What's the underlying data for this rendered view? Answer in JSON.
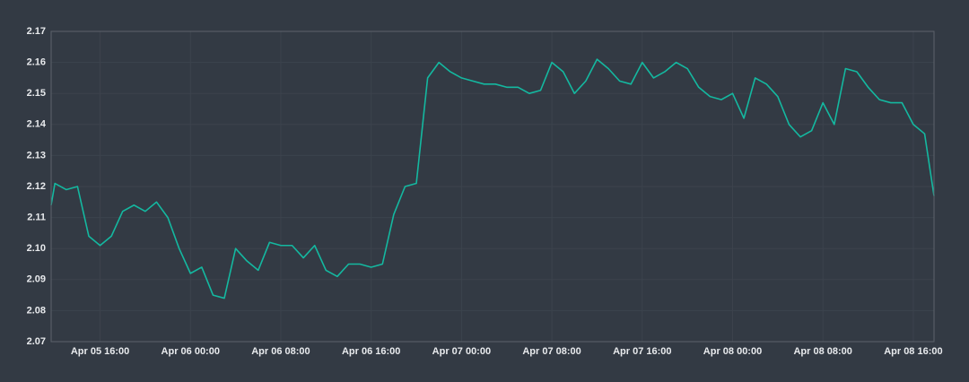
{
  "chart_data": {
    "type": "line",
    "color": "#14b8a0",
    "grid": true,
    "xlim": [
      "Apr 05 11:40",
      "Apr 08 17:50"
    ],
    "xticks": [
      "Apr 05 16:00",
      "Apr 06 00:00",
      "Apr 06 08:00",
      "Apr 06 16:00",
      "Apr 07 00:00",
      "Apr 07 08:00",
      "Apr 07 16:00",
      "Apr 08 00:00",
      "Apr 08 08:00",
      "Apr 08 16:00"
    ],
    "ylim": [
      2.07,
      2.17
    ],
    "yticks": [
      2.07,
      2.08,
      2.09,
      {
        "value": 2.1,
        "label": "2.10"
      },
      2.11,
      2.12,
      2.13,
      2.14,
      2.15,
      2.16,
      2.17
    ],
    "x": [
      "Apr 05 11:40",
      "Apr 05 12:00",
      "Apr 05 13:00",
      "Apr 05 14:00",
      "Apr 05 15:00",
      "Apr 05 16:00",
      "Apr 05 17:00",
      "Apr 05 18:00",
      "Apr 05 19:00",
      "Apr 05 20:00",
      "Apr 05 21:00",
      "Apr 05 22:00",
      "Apr 05 23:00",
      "Apr 06 00:00",
      "Apr 06 01:00",
      "Apr 06 02:00",
      "Apr 06 03:00",
      "Apr 06 04:00",
      "Apr 06 05:00",
      "Apr 06 06:00",
      "Apr 06 07:00",
      "Apr 06 08:00",
      "Apr 06 09:00",
      "Apr 06 10:00",
      "Apr 06 11:00",
      "Apr 06 12:00",
      "Apr 06 13:00",
      "Apr 06 14:00",
      "Apr 06 15:00",
      "Apr 06 16:00",
      "Apr 06 17:00",
      "Apr 06 18:00",
      "Apr 06 19:00",
      "Apr 06 20:00",
      "Apr 06 21:00",
      "Apr 06 22:00",
      "Apr 06 23:00",
      "Apr 07 00:00",
      "Apr 07 01:00",
      "Apr 07 02:00",
      "Apr 07 03:00",
      "Apr 07 04:00",
      "Apr 07 05:00",
      "Apr 07 06:00",
      "Apr 07 07:00",
      "Apr 07 08:00",
      "Apr 07 09:00",
      "Apr 07 10:00",
      "Apr 07 11:00",
      "Apr 07 12:00",
      "Apr 07 13:00",
      "Apr 07 14:00",
      "Apr 07 15:00",
      "Apr 07 16:00",
      "Apr 07 17:00",
      "Apr 07 18:00",
      "Apr 07 19:00",
      "Apr 07 20:00",
      "Apr 07 21:00",
      "Apr 07 22:00",
      "Apr 07 23:00",
      "Apr 08 00:00",
      "Apr 08 01:00",
      "Apr 08 02:00",
      "Apr 08 03:00",
      "Apr 08 04:00",
      "Apr 08 05:00",
      "Apr 08 06:00",
      "Apr 08 07:00",
      "Apr 08 08:00",
      "Apr 08 09:00",
      "Apr 08 10:00",
      "Apr 08 11:00",
      "Apr 08 12:00",
      "Apr 08 13:00",
      "Apr 08 14:00",
      "Apr 08 15:00",
      "Apr 08 16:00",
      "Apr 08 17:00",
      "Apr 08 17:50"
    ],
    "values": [
      2.114,
      2.121,
      2.119,
      2.12,
      2.104,
      2.101,
      2.104,
      2.112,
      2.114,
      2.112,
      2.115,
      2.11,
      2.1,
      2.092,
      2.094,
      2.085,
      2.084,
      2.1,
      2.096,
      2.093,
      2.102,
      2.101,
      2.101,
      2.097,
      2.101,
      2.093,
      2.091,
      2.095,
      2.095,
      2.094,
      2.095,
      2.111,
      2.12,
      2.121,
      2.155,
      2.16,
      2.157,
      2.155,
      2.154,
      2.153,
      2.153,
      2.152,
      2.152,
      2.15,
      2.151,
      2.16,
      2.157,
      2.15,
      2.154,
      2.161,
      2.158,
      2.154,
      2.153,
      2.16,
      2.155,
      2.157,
      2.16,
      2.158,
      2.152,
      2.149,
      2.148,
      2.15,
      2.142,
      2.155,
      2.153,
      2.149,
      2.14,
      2.136,
      2.138,
      2.147,
      2.14,
      2.158,
      2.157,
      2.152,
      2.148,
      2.147,
      2.147,
      2.14,
      2.137,
      2.117
    ]
  }
}
